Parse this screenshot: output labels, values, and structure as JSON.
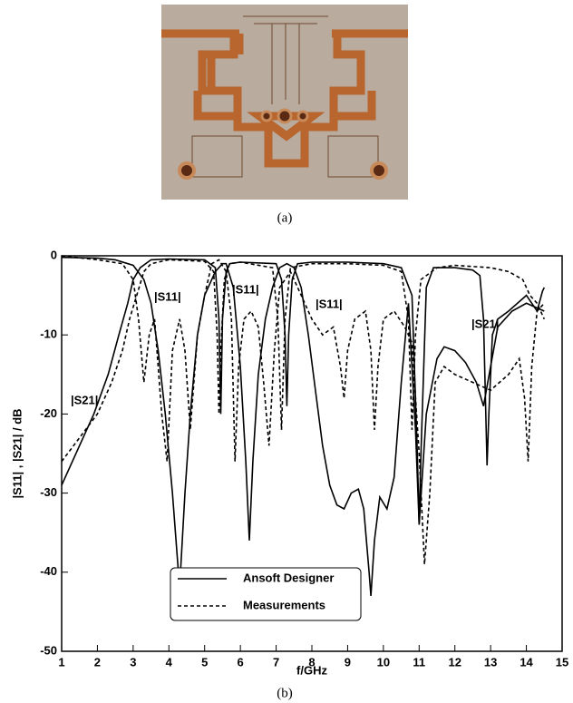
{
  "caption_a": "(a)",
  "caption_b": "(b)",
  "chart_data": {
    "type": "line",
    "xlabel": "f/GHz",
    "ylabel": "|S11| , |S21| / dB",
    "xlim": [
      1,
      15
    ],
    "ylim": [
      -50,
      0
    ],
    "xticks": [
      1,
      2,
      3,
      4,
      5,
      6,
      7,
      8,
      9,
      10,
      11,
      12,
      13,
      14,
      15
    ],
    "yticks": [
      0,
      -10,
      -20,
      -30,
      -40,
      -50
    ],
    "annotations": [
      "|S21|",
      "|S11|",
      "|S11|",
      "|S11|",
      "|S21|"
    ],
    "legend": "bottom-center",
    "series": [
      {
        "name": "Ansoft Designer",
        "color": "#000000",
        "dashed": false,
        "curves": [
          {
            "x": [
              1,
              1.5,
              1.9,
              2.3,
              2.6,
              2.85,
              3,
              3.2,
              3.5,
              4,
              5,
              5.3,
              5.4,
              5.45,
              5.5,
              5.6,
              5.7,
              6,
              7,
              7.15,
              7.25,
              7.3,
              7.35,
              7.45,
              7.6,
              8,
              9,
              10,
              10.5,
              10.8,
              10.95,
              11,
              11.05,
              11.2,
              11.4,
              12,
              12.5,
              12.7,
              12.8,
              12.9,
              12.95,
              13.05,
              13.2,
              13.5,
              14,
              14.3,
              14.45,
              14.5
            ],
            "values": [
              -29,
              -24,
              -20,
              -15,
              -10,
              -6,
              -3,
              -1.5,
              -0.5,
              -0.4,
              -0.5,
              -1.5,
              -8,
              -20,
              -8,
              -2,
              -1,
              -0.8,
              -1,
              -3,
              -10,
              -19,
              -10,
              -3,
              -1,
              -0.8,
              -0.8,
              -1,
              -1.5,
              -5,
              -25,
              -34,
              -25,
              -4,
              -1.5,
              -1.5,
              -1.8,
              -2.5,
              -8,
              -26.5,
              -20,
              -10,
              -8,
              -7,
              -5,
              -7,
              -4.5,
              -4
            ]
          },
          {
            "x": [
              1,
              2,
              2.5,
              3,
              3.3,
              3.5,
              3.7,
              3.9,
              4.1,
              4.3,
              4.45,
              4.6,
              4.8,
              5,
              5.3,
              5.5,
              5.6,
              5.8,
              6,
              6.15,
              6.25,
              6.35,
              6.5,
              6.7,
              6.9,
              7.1,
              7.3,
              7.5,
              7.7,
              7.9,
              8.1,
              8.3,
              8.5,
              8.7,
              8.9,
              9.1,
              9.3,
              9.45,
              9.6,
              9.65,
              9.75,
              9.9,
              10.1,
              10.3,
              10.5,
              10.7,
              10.9,
              11,
              11.2,
              11.5,
              11.7,
              12,
              12.3,
              12.6,
              12.8,
              13,
              13.2,
              13.6,
              14,
              14.5
            ],
            "values": [
              -0.2,
              -0.3,
              -0.5,
              -1.2,
              -3,
              -6,
              -12,
              -20,
              -30,
              -42,
              -30,
              -20,
              -10,
              -5,
              -2,
              -1,
              -1,
              -4,
              -14,
              -26,
              -36,
              -26,
              -15,
              -8,
              -4,
              -1.5,
              -1,
              -1.5,
              -4,
              -10,
              -17,
              -24,
              -29,
              -31.5,
              -32,
              -30,
              -29.5,
              -32,
              -40,
              -43,
              -36,
              -30.5,
              -32,
              -28,
              -16,
              -6,
              -22,
              -34,
              -20,
              -13,
              -11.5,
              -12,
              -13.5,
              -16,
              -19,
              -14,
              -9,
              -7,
              -6,
              -7
            ]
          }
        ]
      },
      {
        "name": "Measurements",
        "color": "#000000",
        "dashed": true,
        "curves": [
          {
            "x": [
              1,
              1.5,
              2,
              2.4,
              2.7,
              2.9,
              3.1,
              3.3,
              3.5,
              4,
              5,
              5.25,
              5.35,
              5.4,
              5.45,
              5.55,
              5.7,
              6,
              6.9,
              7.05,
              7.15,
              7.25,
              7.4,
              8,
              9,
              10,
              10.5,
              10.7,
              10.8,
              10.9,
              11.05,
              11.5,
              12,
              13,
              13.5,
              13.9,
              14.1,
              14.3,
              14.5
            ],
            "values": [
              -26,
              -23,
              -20,
              -16,
              -12,
              -8,
              -5,
              -2,
              -1,
              -0.5,
              -0.7,
              -2,
              -10,
              -20,
              -12,
              -3,
              -1,
              -0.8,
              -1.5,
              -8,
              -22,
              -8,
              -1.5,
              -1,
              -1,
              -1.2,
              -2,
              -8,
              -22,
              -10,
              -3,
              -1.5,
              -1.2,
              -1.5,
              -2,
              -3,
              -5,
              -6,
              -8
            ]
          },
          {
            "x": [
              1,
              2,
              2.7,
              3,
              3.15,
              3.3,
              3.45,
              3.6,
              3.8,
              3.95,
              4.1,
              4.3,
              4.45,
              4.6,
              4.8,
              5,
              5.2,
              5.4,
              5.6,
              5.75,
              5.85,
              5.95,
              6.1,
              6.3,
              6.5,
              6.65,
              6.8,
              6.95,
              7.1,
              7.4,
              7.7,
              8,
              8.3,
              8.6,
              8.8,
              8.9,
              9,
              9.2,
              9.5,
              9.65,
              9.75,
              9.85,
              10,
              10.3,
              10.6,
              10.8,
              11,
              11.15,
              11.3,
              11.45,
              11.7,
              12,
              12.5,
              13,
              13.5,
              13.8,
              13.95,
              14.05,
              14.15,
              14.3,
              14.5
            ],
            "values": [
              0,
              -0.5,
              -1,
              -3,
              -8,
              -16,
              -10,
              -8,
              -20,
              -26,
              -12,
              -8,
              -12,
              -22,
              -10,
              -5,
              -1,
              -0.5,
              -2,
              -8,
              -26,
              -14,
              -8,
              -7,
              -9,
              -16,
              -24,
              -12,
              -4,
              -2,
              -5,
              -8,
              -10,
              -9,
              -14,
              -18,
              -12,
              -8,
              -7,
              -12,
              -22,
              -14,
              -8,
              -7,
              -9,
              -11,
              -25,
              -39,
              -30,
              -16,
              -14,
              -15,
              -16,
              -17,
              -15,
              -13,
              -18,
              -26,
              -14,
              -7,
              -6
            ]
          }
        ]
      }
    ]
  }
}
